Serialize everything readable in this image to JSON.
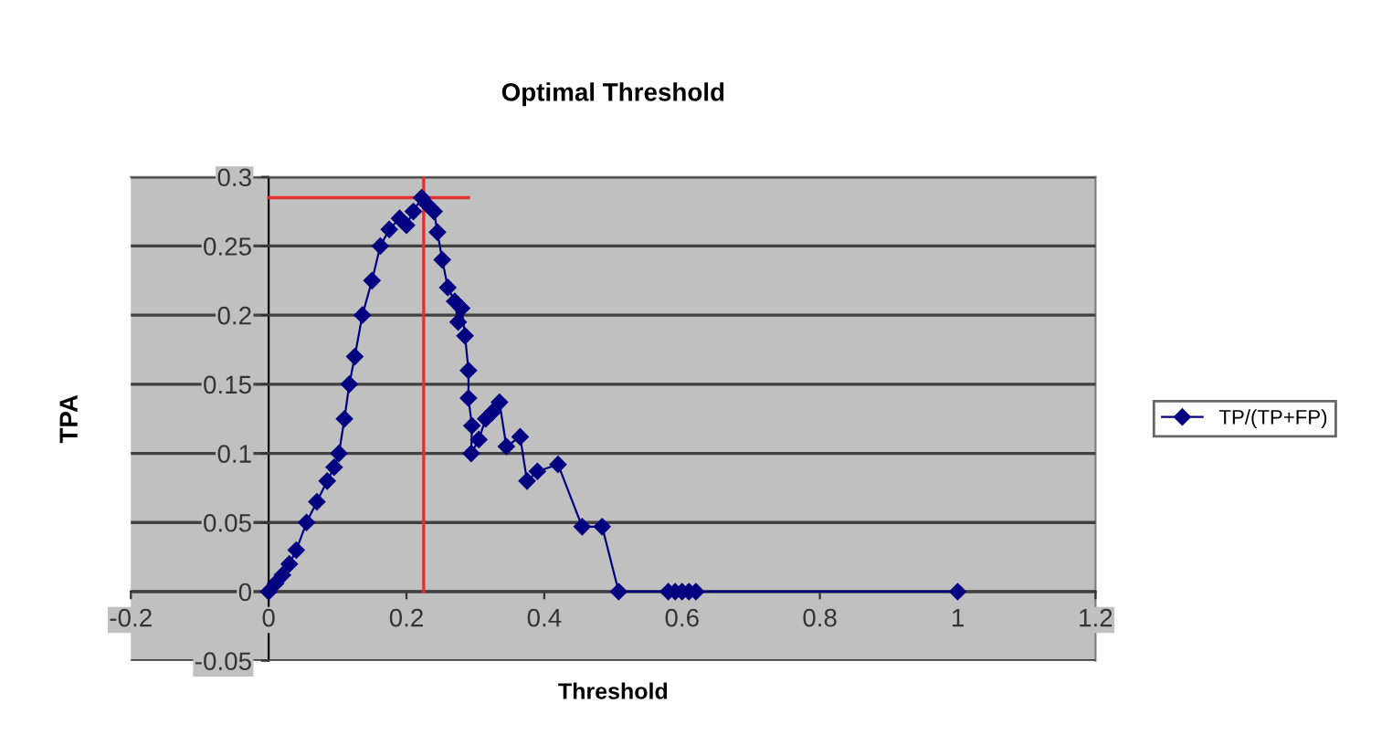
{
  "chart_data": {
    "type": "line",
    "title": "Optimal Threshold",
    "xlabel": "Threshold",
    "ylabel": "TPA",
    "xlim": [
      -0.2,
      1.2
    ],
    "xticks": [
      -0.2,
      0,
      0.2,
      0.4,
      0.6,
      0.8,
      1,
      1.2
    ],
    "ylim": [
      -0.05,
      0.3
    ],
    "yticks": [
      -0.05,
      0,
      0.05,
      0.1,
      0.15,
      0.2,
      0.25,
      0.3
    ],
    "grid": "y",
    "legend": "right",
    "marker": "diamond",
    "line_style": "solid",
    "series": [
      {
        "name": "TP/(TP+FP)",
        "color": "#000080",
        "x": [
          0,
          0.01,
          0.02,
          0.03,
          0.04,
          0.055,
          0.07,
          0.085,
          0.095,
          0.102,
          0.11,
          0.117,
          0.125,
          0.136,
          0.15,
          0.162,
          0.175,
          0.19,
          0.2,
          0.21,
          0.222,
          0.23,
          0.24,
          0.245,
          0.252,
          0.26,
          0.27,
          0.275,
          0.28,
          0.285,
          0.29,
          0.29,
          0.295,
          0.294,
          0.305,
          0.315,
          0.325,
          0.335,
          0.345,
          0.365,
          0.375,
          0.39,
          0.42,
          0.455,
          0.484,
          0.508,
          0.58,
          0.59,
          0.6,
          0.61,
          0.62,
          1
        ],
        "values": [
          0,
          0.006,
          0.012,
          0.02,
          0.03,
          0.05,
          0.065,
          0.08,
          0.09,
          0.1,
          0.125,
          0.15,
          0.17,
          0.2,
          0.225,
          0.25,
          0.262,
          0.27,
          0.265,
          0.275,
          0.285,
          0.28,
          0.275,
          0.26,
          0.24,
          0.22,
          0.21,
          0.195,
          0.205,
          0.185,
          0.16,
          0.14,
          0.12,
          0.1,
          0.11,
          0.125,
          0.13,
          0.137,
          0.105,
          0.112,
          0.08,
          0.087,
          0.092,
          0.047,
          0.047,
          0,
          0,
          0,
          0,
          0,
          0,
          0
        ]
      },
      {
        "type": "line",
        "color": "#e03030",
        "marker": "none",
        "x": [
          0,
          0.29
        ],
        "values": [
          0.285,
          0.285
        ]
      },
      {
        "type": "line",
        "color": "#e03030",
        "marker": "none",
        "x": [
          0.225,
          0.225
        ],
        "values": [
          0,
          0.3
        ]
      }
    ]
  }
}
